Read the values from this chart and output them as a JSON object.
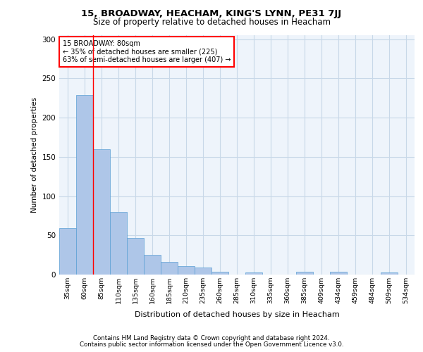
{
  "title1": "15, BROADWAY, HEACHAM, KING'S LYNN, PE31 7JJ",
  "title2": "Size of property relative to detached houses in Heacham",
  "xlabel": "Distribution of detached houses by size in Heacham",
  "ylabel": "Number of detached properties",
  "footer1": "Contains HM Land Registry data © Crown copyright and database right 2024.",
  "footer2": "Contains public sector information licensed under the Open Government Licence v3.0.",
  "categories": [
    "35sqm",
    "60sqm",
    "85sqm",
    "110sqm",
    "135sqm",
    "160sqm",
    "185sqm",
    "210sqm",
    "235sqm",
    "260sqm",
    "285sqm",
    "310sqm",
    "335sqm",
    "360sqm",
    "385sqm",
    "409sqm",
    "434sqm",
    "459sqm",
    "484sqm",
    "509sqm",
    "534sqm"
  ],
  "values": [
    59,
    229,
    160,
    80,
    47,
    25,
    16,
    11,
    9,
    4,
    0,
    3,
    0,
    0,
    4,
    0,
    4,
    0,
    0,
    3,
    0
  ],
  "bar_color": "#aec6e8",
  "bar_edge_color": "#5a9fd4",
  "annotation_text": "15 BROADWAY: 80sqm\n← 35% of detached houses are smaller (225)\n63% of semi-detached houses are larger (407) →",
  "annotation_box_color": "white",
  "annotation_box_edge_color": "red",
  "vline_color": "red",
  "vline_x": 1.5,
  "ylim": [
    0,
    305
  ],
  "yticks": [
    0,
    50,
    100,
    150,
    200,
    250,
    300
  ],
  "grid_color": "#c8d8e8",
  "bg_color": "#eef4fb",
  "fig_width": 6.0,
  "fig_height": 5.0,
  "dpi": 100
}
